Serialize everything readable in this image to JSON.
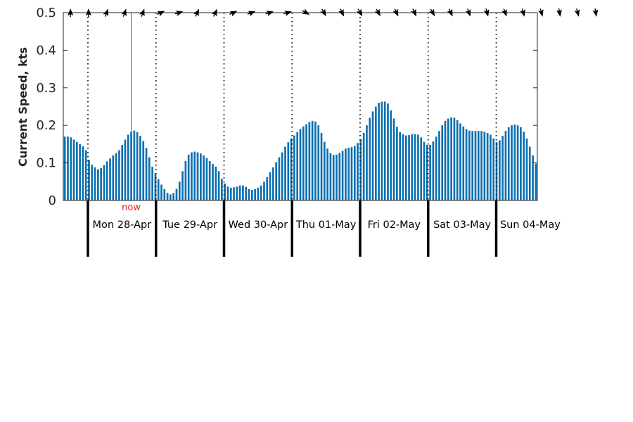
{
  "chart_data": {
    "type": "bar",
    "ylabel": "Current Speed, kts",
    "ylim": [
      0,
      0.5
    ],
    "yticks": [
      "0",
      "0.1",
      "0.2",
      "0.3",
      "0.4",
      "0.5"
    ],
    "bar_color": "#0b6fb0",
    "now_color": "#e0241b",
    "now_label": "now",
    "now_index": 22,
    "days": [
      "Mon 28-Apr",
      "Tue 29-Apr",
      "Wed 30-Apr",
      "Thu 01-May",
      "Fri 02-May",
      "Sat 03-May",
      "Sun 04-May"
    ],
    "start_hour": 3,
    "values": [
      0.17,
      0.17,
      0.168,
      0.162,
      0.156,
      0.15,
      0.144,
      0.134,
      0.108,
      0.095,
      0.088,
      0.083,
      0.086,
      0.094,
      0.104,
      0.112,
      0.12,
      0.126,
      0.134,
      0.148,
      0.162,
      0.175,
      0.183,
      0.186,
      0.182,
      0.172,
      0.158,
      0.14,
      0.115,
      0.09,
      0.072,
      0.057,
      0.042,
      0.03,
      0.02,
      0.016,
      0.02,
      0.031,
      0.05,
      0.078,
      0.105,
      0.122,
      0.128,
      0.13,
      0.128,
      0.125,
      0.12,
      0.113,
      0.105,
      0.097,
      0.09,
      0.078,
      0.058,
      0.045,
      0.037,
      0.034,
      0.035,
      0.037,
      0.04,
      0.04,
      0.036,
      0.03,
      0.028,
      0.03,
      0.034,
      0.04,
      0.05,
      0.062,
      0.075,
      0.088,
      0.102,
      0.115,
      0.128,
      0.143,
      0.155,
      0.165,
      0.173,
      0.182,
      0.19,
      0.197,
      0.203,
      0.209,
      0.212,
      0.21,
      0.2,
      0.18,
      0.156,
      0.138,
      0.126,
      0.121,
      0.122,
      0.127,
      0.132,
      0.138,
      0.14,
      0.142,
      0.145,
      0.153,
      0.163,
      0.18,
      0.2,
      0.22,
      0.237,
      0.25,
      0.26,
      0.263,
      0.263,
      0.258,
      0.24,
      0.218,
      0.196,
      0.182,
      0.176,
      0.173,
      0.174,
      0.176,
      0.177,
      0.175,
      0.168,
      0.156,
      0.148,
      0.148,
      0.157,
      0.17,
      0.185,
      0.2,
      0.212,
      0.218,
      0.221,
      0.22,
      0.214,
      0.205,
      0.197,
      0.19,
      0.186,
      0.185,
      0.185,
      0.185,
      0.185,
      0.183,
      0.18,
      0.175,
      0.165,
      0.155,
      0.16,
      0.172,
      0.185,
      0.195,
      0.2,
      0.202,
      0.2,
      0.195,
      0.183,
      0.165,
      0.143,
      0.12,
      0.098
    ],
    "arrows": [
      {
        "hour": 3,
        "dir": 180
      },
      {
        "hour": 9,
        "dir": 180
      },
      {
        "hour": 15,
        "dir": 200
      },
      {
        "hour": 21,
        "dir": 200
      },
      {
        "hour": 27,
        "dir": 200
      },
      {
        "hour": 33,
        "dir": 245
      },
      {
        "hour": 39,
        "dir": 255
      },
      {
        "hour": 45,
        "dir": 205
      },
      {
        "hour": 51,
        "dir": 205
      },
      {
        "hour": 57,
        "dir": 245
      },
      {
        "hour": 63,
        "dir": 250
      },
      {
        "hour": 69,
        "dir": 255
      },
      {
        "hour": 75,
        "dir": 255
      },
      {
        "hour": 81,
        "dir": 300
      },
      {
        "hour": 87,
        "dir": 330
      },
      {
        "hour": 93,
        "dir": 335
      },
      {
        "hour": 99,
        "dir": 330
      },
      {
        "hour": 105,
        "dir": 330
      },
      {
        "hour": 111,
        "dir": 335
      },
      {
        "hour": 117,
        "dir": 335
      },
      {
        "hour": 123,
        "dir": 330
      },
      {
        "hour": 129,
        "dir": 335
      },
      {
        "hour": 135,
        "dir": 340
      },
      {
        "hour": 141,
        "dir": 345
      },
      {
        "hour": 147,
        "dir": 340
      },
      {
        "hour": 153,
        "dir": 345
      },
      {
        "hour": 159,
        "dir": 345
      },
      {
        "hour": 165,
        "dir": 350
      },
      {
        "hour": 171,
        "dir": 345
      },
      {
        "hour": 177,
        "dir": 350
      }
    ]
  }
}
